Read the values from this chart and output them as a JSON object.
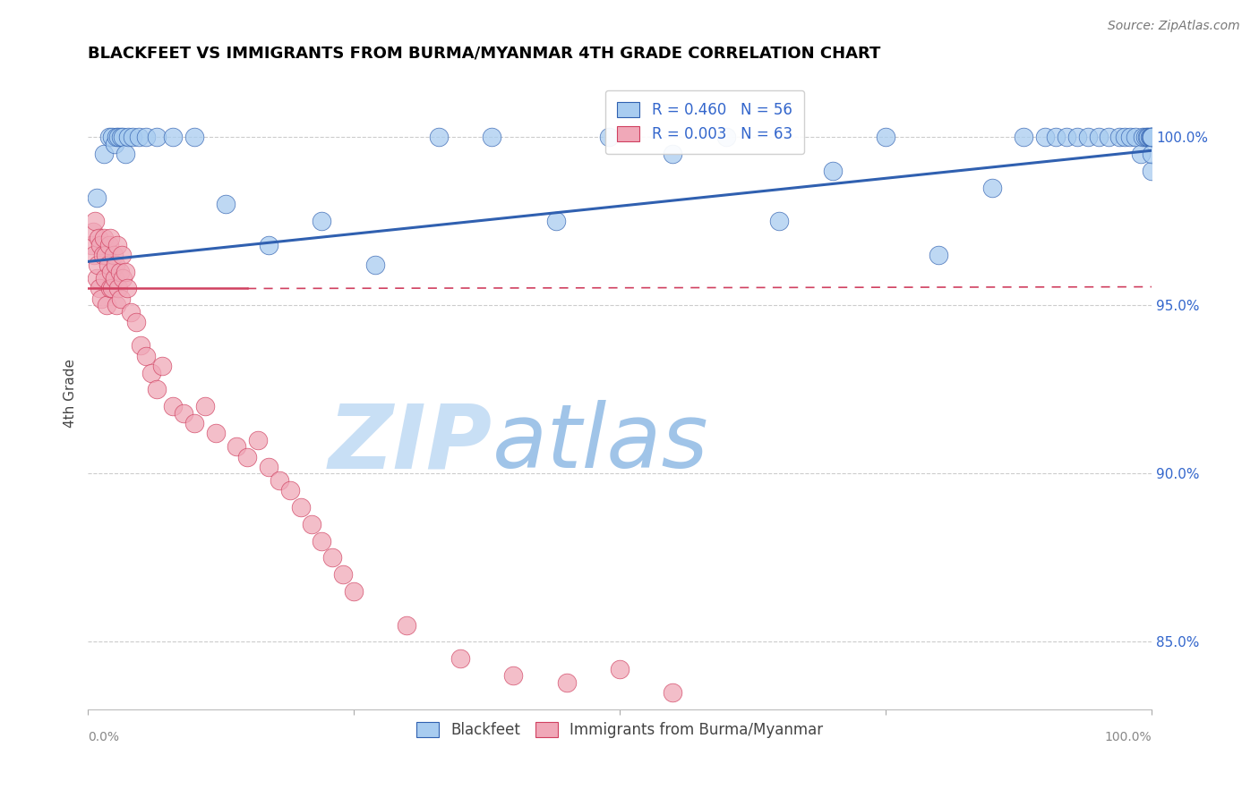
{
  "title": "BLACKFEET VS IMMIGRANTS FROM BURMA/MYANMAR 4TH GRADE CORRELATION CHART",
  "source": "Source: ZipAtlas.com",
  "ylabel": "4th Grade",
  "xlim": [
    0.0,
    100.0
  ],
  "ylim": [
    83.0,
    101.8
  ],
  "legend_blue_label": "R = 0.460   N = 56",
  "legend_pink_label": "R = 0.003   N = 63",
  "legend_bottom_blue": "Blackfeet",
  "legend_bottom_pink": "Immigrants from Burma/Myanmar",
  "blue_color": "#A8CCF0",
  "pink_color": "#F0A8B8",
  "trendline_blue_color": "#3060B0",
  "trendline_pink_color": "#D04060",
  "watermark_zip": "ZIP",
  "watermark_atlas": "atlas",
  "watermark_color_zip": "#C8DFF5",
  "watermark_color_atlas": "#A0C4E8",
  "blue_trend_x0": 0.0,
  "blue_trend_y0": 96.3,
  "blue_trend_x1": 100.0,
  "blue_trend_y1": 99.6,
  "pink_trend_solid_x0": 0.0,
  "pink_trend_solid_y0": 95.5,
  "pink_trend_solid_x1": 15.0,
  "pink_trend_solid_y1": 95.5,
  "pink_trend_dash_x0": 15.0,
  "pink_trend_dash_y0": 95.5,
  "pink_trend_dash_x1": 100.0,
  "pink_trend_dash_y1": 95.55,
  "blue_points_x": [
    0.8,
    1.5,
    2.0,
    2.3,
    2.5,
    2.7,
    2.9,
    3.1,
    3.3,
    3.5,
    3.8,
    4.2,
    4.8,
    5.5,
    6.5,
    8.0,
    10.0,
    13.0,
    17.0,
    22.0,
    27.0,
    33.0,
    38.0,
    44.0,
    49.0,
    55.0,
    60.0,
    65.0,
    70.0,
    75.0,
    80.0,
    85.0,
    88.0,
    90.0,
    91.0,
    92.0,
    93.0,
    94.0,
    95.0,
    96.0,
    97.0,
    97.5,
    98.0,
    98.5,
    99.0,
    99.2,
    99.4,
    99.6,
    99.7,
    99.8,
    99.9,
    100.0,
    100.0,
    100.0,
    100.0,
    100.0
  ],
  "blue_points_y": [
    98.2,
    99.5,
    100.0,
    100.0,
    99.8,
    100.0,
    100.0,
    100.0,
    100.0,
    99.5,
    100.0,
    100.0,
    100.0,
    100.0,
    100.0,
    100.0,
    100.0,
    98.0,
    96.8,
    97.5,
    96.2,
    100.0,
    100.0,
    97.5,
    100.0,
    99.5,
    100.0,
    97.5,
    99.0,
    100.0,
    96.5,
    98.5,
    100.0,
    100.0,
    100.0,
    100.0,
    100.0,
    100.0,
    100.0,
    100.0,
    100.0,
    100.0,
    100.0,
    100.0,
    99.5,
    100.0,
    100.0,
    100.0,
    100.0,
    100.0,
    100.0,
    99.0,
    99.5,
    100.0,
    100.0,
    100.0
  ],
  "pink_points_x": [
    0.3,
    0.5,
    0.6,
    0.7,
    0.8,
    0.9,
    1.0,
    1.1,
    1.2,
    1.3,
    1.4,
    1.5,
    1.6,
    1.7,
    1.8,
    1.9,
    2.0,
    2.1,
    2.1,
    2.2,
    2.3,
    2.4,
    2.5,
    2.6,
    2.7,
    2.8,
    2.9,
    3.0,
    3.1,
    3.2,
    3.3,
    3.5,
    3.7,
    4.0,
    4.5,
    5.0,
    5.5,
    6.0,
    6.5,
    7.0,
    8.0,
    9.0,
    10.0,
    11.0,
    12.0,
    14.0,
    15.0,
    16.0,
    17.0,
    18.0,
    19.0,
    20.0,
    21.0,
    22.0,
    23.0,
    24.0,
    25.0,
    30.0,
    35.0,
    40.0,
    45.0,
    50.0,
    55.0
  ],
  "pink_points_y": [
    96.8,
    97.2,
    96.5,
    97.5,
    95.8,
    96.2,
    97.0,
    95.5,
    96.8,
    95.2,
    96.5,
    97.0,
    95.8,
    96.5,
    95.0,
    96.2,
    96.8,
    95.5,
    97.0,
    96.0,
    95.5,
    96.5,
    95.8,
    96.2,
    95.0,
    96.8,
    95.5,
    96.0,
    95.2,
    96.5,
    95.8,
    96.0,
    95.5,
    94.8,
    94.5,
    93.8,
    93.5,
    93.0,
    92.5,
    93.2,
    92.0,
    91.8,
    91.5,
    92.0,
    91.2,
    90.8,
    90.5,
    91.0,
    90.2,
    89.8,
    89.5,
    89.0,
    88.5,
    88.0,
    87.5,
    87.0,
    86.5,
    85.5,
    84.5,
    84.0,
    83.8,
    84.2,
    83.5
  ]
}
